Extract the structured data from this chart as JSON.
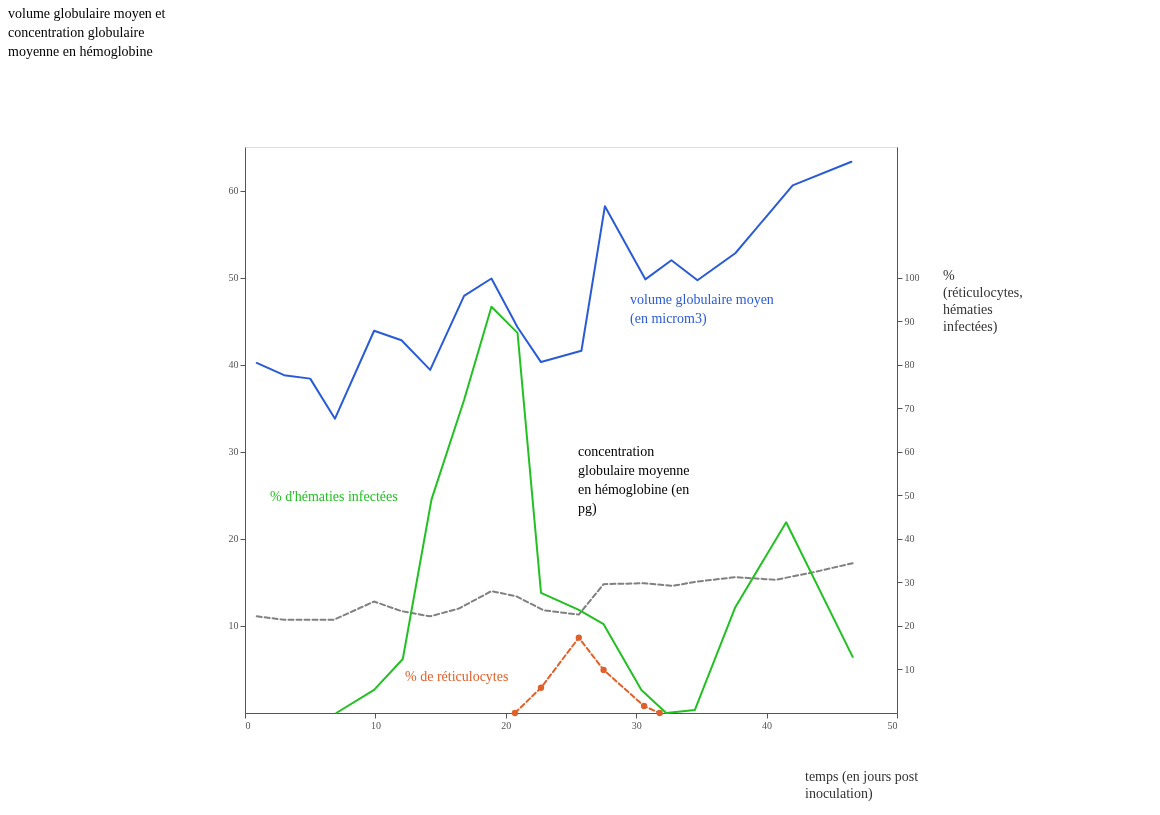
{
  "chart_data": {
    "type": "line",
    "y2label": "% (réticulocytes, hématies infectées)",
    "xlabel": "temps (en jours post inoculation)",
    "xlim": [
      0,
      50
    ],
    "xticks": [
      0,
      10,
      20,
      30,
      40,
      50
    ],
    "ylim": [
      0,
      65
    ],
    "yticks": [
      10,
      20,
      30,
      40,
      50,
      60
    ],
    "y2lim": [
      0,
      130
    ],
    "y2ticks": [
      10,
      20,
      30,
      40,
      50,
      60,
      70,
      80,
      90,
      100
    ],
    "grid": false,
    "series": [
      {
        "color": "#2a5bd7",
        "line_style": "solid",
        "marker": "none",
        "x": [
          0.9,
          3.0,
          5.0,
          6.9,
          9.9,
          12.0,
          14.2,
          16.8,
          18.9,
          20.9,
          22.7,
          25.8,
          27.6,
          30.7,
          32.7,
          34.7,
          37.6,
          39.8,
          42.0,
          46.5
        ],
        "values": [
          40.2,
          38.8,
          38.4,
          33.8,
          43.9,
          42.8,
          39.4,
          47.9,
          49.9,
          44.3,
          40.3,
          41.6,
          58.2,
          49.8,
          52.0,
          49.7,
          52.8,
          56.7,
          60.6,
          63.3
        ]
      },
      {
        "color": "#22c022",
        "axis": "y2",
        "line_style": "solid",
        "marker": "none",
        "x": [
          7.0,
          9.9,
          12.1,
          14.3,
          16.8,
          18.9,
          20.9,
          22.7,
          25.6,
          27.5,
          30.4,
          32.3,
          34.5,
          37.6,
          41.5,
          46.6
        ],
        "values": [
          0,
          5.3,
          12.4,
          49,
          71.9,
          93.3,
          87.3,
          27.6,
          23.7,
          20.4,
          5.3,
          0,
          0.7,
          24.3,
          43.8,
          12.9
        ]
      },
      {
        "color": "#e0602a",
        "axis": "y2",
        "line_style": "dashed",
        "marker": "circle",
        "x": [
          20.7,
          22.7,
          25.6,
          27.5,
          30.6,
          31.8
        ],
        "values": [
          0,
          5.8,
          17.3,
          9.9,
          1.6,
          0
        ]
      },
      {
        "color": "#808080",
        "line_style": "dashed",
        "marker": "none",
        "x": [
          0.9,
          3.0,
          6.8,
          9.9,
          12.0,
          14.2,
          16.4,
          18.9,
          20.8,
          22.9,
          25.6,
          27.5,
          30.6,
          32.8,
          34.7,
          37.6,
          40.7,
          43.4,
          46.6
        ],
        "values": [
          11.1,
          10.7,
          10.7,
          12.8,
          11.7,
          11.1,
          12.0,
          14.0,
          13.4,
          11.8,
          11.3,
          14.8,
          14.9,
          14.6,
          15.1,
          15.6,
          15.3,
          16.1,
          17.2
        ]
      }
    ],
    "annotations": [
      "volume globulaire moyen (en microm3)",
      "% d'hématies infectées",
      "% de réticulocytes",
      "concentration globulaire moyenne en hémoglobine (en pg)",
      "volume globulaire moyen et concentration globulaire moyenne en hémoglobine"
    ]
  }
}
